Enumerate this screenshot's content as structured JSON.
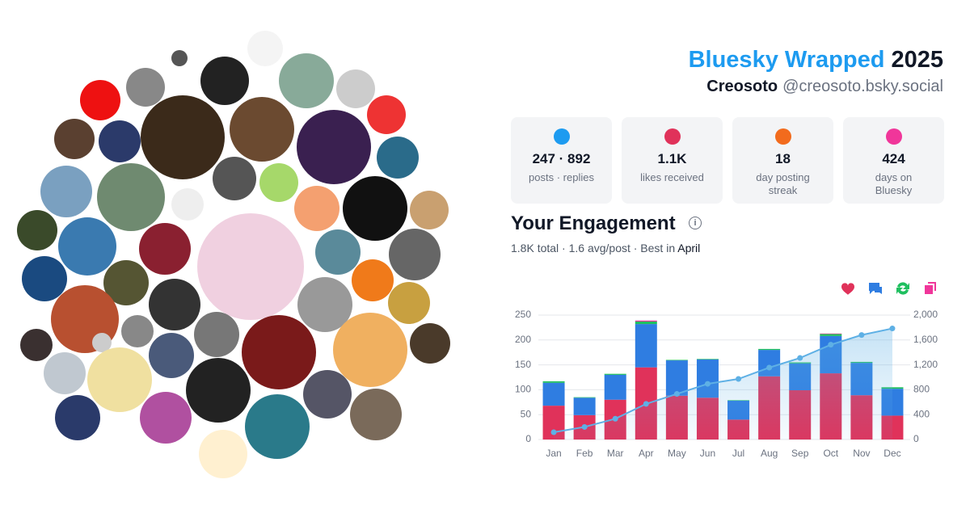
{
  "header": {
    "title": "Bluesky Wrapped",
    "year": "2025",
    "name": "Creosoto",
    "handle": "@creosoto.bsky.social"
  },
  "stats": [
    {
      "value": "247 · 892",
      "label": "posts · replies",
      "icon_color": "#1d9bf0"
    },
    {
      "value": "1.1K",
      "label": "likes received",
      "icon_color": "#e0325a"
    },
    {
      "value": "18",
      "label": "day posting streak",
      "icon_color": "#f26b1d"
    },
    {
      "value": "424",
      "label": "days on Bluesky",
      "icon_color": "#f0369a"
    }
  ],
  "engagement": {
    "title": "Your Engagement",
    "summary": "1.8K total · 1.6 avg/post · Best in ",
    "best": "April"
  },
  "chart_data": {
    "type": "bar",
    "stacked": true,
    "categories": [
      "Jan",
      "Feb",
      "Mar",
      "Apr",
      "May",
      "Jun",
      "Jul",
      "Aug",
      "Sep",
      "Oct",
      "Nov",
      "Dec"
    ],
    "series": [
      {
        "color": "#e0325a",
        "values": [
          68,
          49,
          80,
          145,
          88,
          84,
          40,
          127,
          99,
          133,
          89,
          48
        ]
      },
      {
        "color": "#2f7de1",
        "values": [
          46,
          35,
          50,
          87,
          71,
          77,
          38,
          53,
          54,
          75,
          65,
          54
        ]
      },
      {
        "color": "#1fbf5f",
        "values": [
          3,
          1,
          2,
          5,
          1,
          1,
          1,
          2,
          2,
          4,
          2,
          3
        ]
      },
      {
        "color": "#f0369a",
        "values": [
          0,
          0,
          0,
          2,
          0,
          0,
          0,
          0,
          0,
          1,
          0,
          0
        ]
      },
      {
        "type": "line",
        "axis": "y2",
        "color": "#5eb0e5",
        "area": true,
        "values": [
          117,
          202,
          334,
          573,
          733,
          895,
          974,
          1156,
          1311,
          1524,
          1680,
          1785
        ]
      }
    ],
    "ylim": [
      0,
      250
    ],
    "yticks": [
      0,
      50,
      100,
      150,
      200,
      250
    ],
    "y2lim": [
      0,
      2000
    ],
    "y2ticks": [
      0,
      400,
      800,
      {
        "value": 1200,
        "label": "1,200"
      },
      {
        "value": 1600,
        "label": "1,600"
      },
      {
        "value": 2000,
        "label": "2,000"
      }
    ],
    "grid": true
  }
}
